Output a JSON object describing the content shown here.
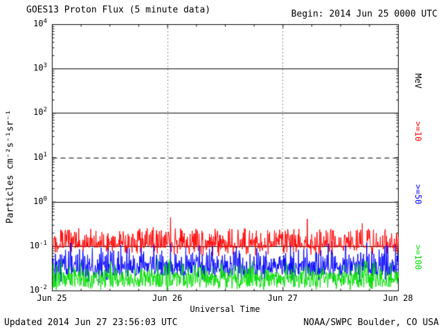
{
  "header": {
    "title": "GOES13 Proton Flux (5 minute data)",
    "begin": "Begin: 2014 Jun 25 0000 UTC"
  },
  "footer": {
    "updated": "Updated 2014 Jun 27 23:56:03 UTC",
    "source": "NOAA/SWPC Boulder, CO USA"
  },
  "chart_data": {
    "type": "line",
    "title": "GOES13 Proton Flux (5 minute data)",
    "xlabel": "Universal Time",
    "ylabel": "Particles cm⁻²s⁻¹sr⁻¹",
    "right_axis_unit": "MeV",
    "x_ticks": [
      "Jun 25",
      "Jun 26",
      "Jun 27",
      "Jun 28"
    ],
    "y_tick_exponents": [
      4,
      3,
      2,
      1,
      0,
      -1,
      -2
    ],
    "ylim_log": [
      -2,
      4
    ],
    "x_range_days": 3,
    "points_per_day": 288,
    "x_minor_tick_hours": 6,
    "grid": {
      "solid_h_exponents": [
        3,
        2,
        0,
        -1
      ],
      "dashed_h_exponents": [
        1
      ],
      "dotted_v_ticks": [
        "Jun 26",
        "Jun 27"
      ]
    },
    "series": [
      {
        "name": ">=10",
        "color": "#ff0000",
        "base_log": -1.0,
        "jitter": 0.03,
        "spike_prob": 0.5,
        "spike_amp": 0.4,
        "big_spike_prob": 0.01,
        "big_spike_amp": 0.3,
        "dip_prob": 0.2,
        "dip_amp": 0.2,
        "approx_level": 0.1,
        "approx_range": [
          0.06,
          0.6
        ]
      },
      {
        "name": ">=50",
        "color": "#0000ff",
        "base_log": -1.5,
        "jitter": 0.17,
        "spike_prob": 0.35,
        "spike_amp": 0.45,
        "big_spike_prob": 0.003,
        "big_spike_amp": 0.8,
        "dip_prob": 0.2,
        "dip_amp": 0.2,
        "approx_level": 0.035,
        "approx_range": [
          0.015,
          0.55
        ]
      },
      {
        "name": ">=100",
        "color": "#00dd00",
        "base_log": -1.75,
        "jitter": 0.18,
        "spike_prob": 0.3,
        "spike_amp": 0.3,
        "big_spike_prob": 0.0,
        "big_spike_amp": 0.0,
        "dip_prob": 0.15,
        "dip_amp": 0.15,
        "approx_level": 0.02,
        "approx_range": [
          0.01,
          0.06
        ]
      }
    ],
    "seed": 20140625
  }
}
